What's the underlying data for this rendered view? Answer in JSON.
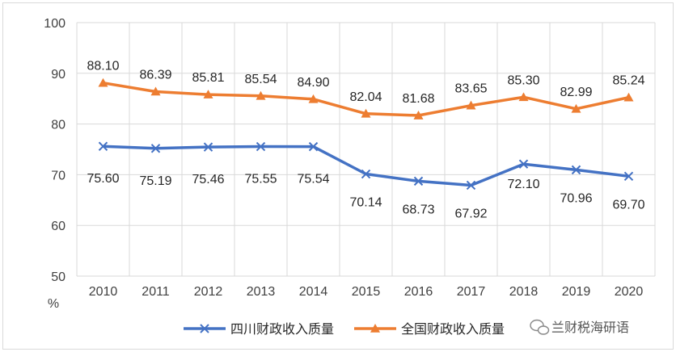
{
  "chart_data": {
    "type": "line",
    "title": "",
    "xlabel": "",
    "ylabel": "%",
    "categories": [
      "2010",
      "2011",
      "2012",
      "2013",
      "2014",
      "2015",
      "2016",
      "2017",
      "2018",
      "2019",
      "2020"
    ],
    "ylim": [
      50,
      100
    ],
    "yticks": [
      "50",
      "60",
      "70",
      "80",
      "90",
      "100"
    ],
    "grid": true,
    "legend_position": "bottom",
    "series": [
      {
        "name": "四川财政收入质量",
        "color": "#4472c4",
        "marker": "x",
        "values": [
          75.6,
          75.19,
          75.46,
          75.55,
          75.54,
          70.14,
          68.73,
          67.92,
          72.1,
          70.96,
          69.7
        ],
        "labels": [
          "75.60",
          "75.19",
          "75.46",
          "75.55",
          "75.54",
          "70.14",
          "68.73",
          "67.92",
          "72.10",
          "70.96",
          "69.70"
        ]
      },
      {
        "name": "全国财政收入质量",
        "color": "#ed7d31",
        "marker": "triangle",
        "values": [
          88.1,
          86.39,
          85.81,
          85.54,
          84.9,
          82.04,
          81.68,
          83.65,
          85.3,
          82.99,
          85.24
        ],
        "labels": [
          "88.10",
          "86.39",
          "85.81",
          "85.54",
          "84.90",
          "82.04",
          "81.68",
          "83.65",
          "85.30",
          "82.99",
          "85.24"
        ]
      }
    ]
  },
  "watermark": {
    "text": "兰财税海研语",
    "icon": "wechat-icon"
  }
}
